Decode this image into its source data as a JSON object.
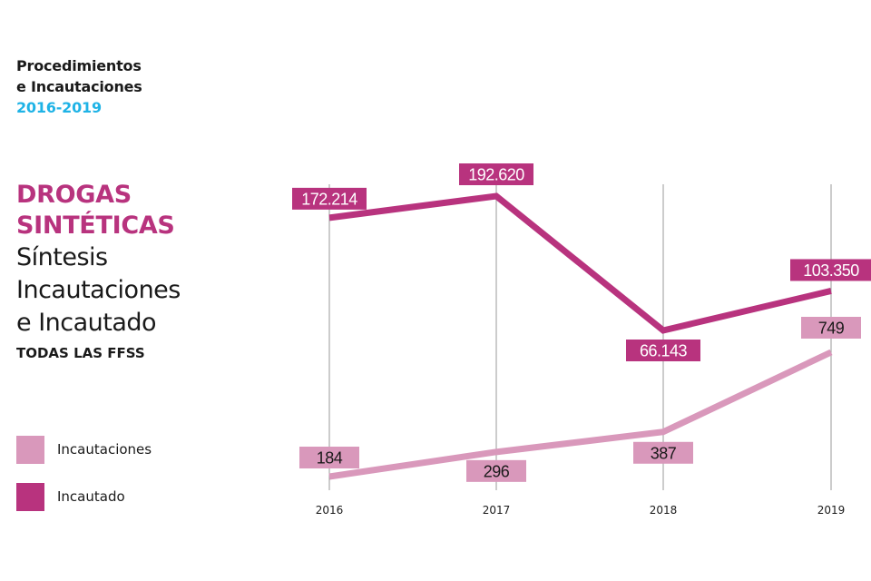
{
  "header": {
    "line1": "Procedimientos",
    "line2": "e Incautaciones",
    "years": "2016-2019"
  },
  "side": {
    "title1": "DROGAS",
    "title2": "SINTÉTICAS",
    "sub1": "Síntesis",
    "sub2": "Incautaciones",
    "sub3": "e Incautado",
    "scope": "TODAS LAS FFSS"
  },
  "legend": [
    {
      "label": "Incautaciones",
      "color": "#d998bb"
    },
    {
      "label": "Incautado",
      "color": "#b8337e"
    }
  ],
  "chart_data": {
    "type": "line",
    "categories": [
      "2016",
      "2017",
      "2018",
      "2019"
    ],
    "series": [
      {
        "name": "Incautado",
        "color": "#b8337e",
        "values": [
          172214,
          192620,
          66143,
          103350
        ],
        "labels": [
          "172.214",
          "192.620",
          "66.143",
          "103.350"
        ]
      },
      {
        "name": "Incautaciones",
        "color": "#d998bb",
        "values": [
          184,
          296,
          387,
          749
        ],
        "labels": [
          "184",
          "296",
          "387",
          "749"
        ]
      }
    ],
    "grid": "vertical",
    "legend_position": "bottom-left"
  }
}
